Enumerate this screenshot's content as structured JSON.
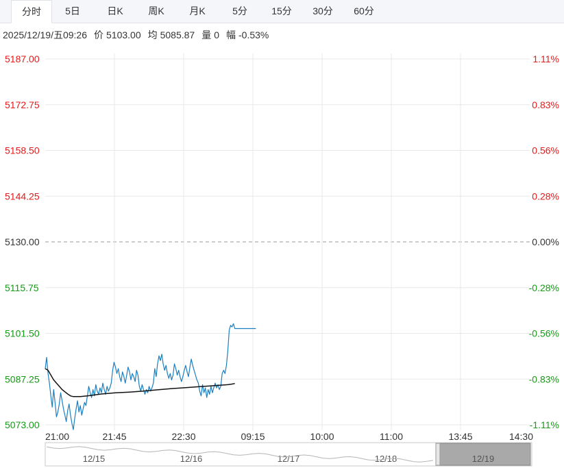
{
  "tabs": [
    {
      "label": "分时",
      "active": true
    },
    {
      "label": "5日",
      "active": false
    },
    {
      "label": "日K",
      "active": false
    },
    {
      "label": "周K",
      "active": false
    },
    {
      "label": "月K",
      "active": false
    },
    {
      "label": "5分",
      "active": false
    },
    {
      "label": "15分",
      "active": false
    },
    {
      "label": "30分",
      "active": false
    },
    {
      "label": "60分",
      "active": false
    }
  ],
  "info": {
    "datetime": "2025/12/19/五09:26",
    "price_label": "价",
    "price": "5103.00",
    "avg_label": "均",
    "avg": "5085.87",
    "volume_label": "量",
    "volume": "0",
    "change_label": "幅",
    "change": "-0.53%"
  },
  "colors": {
    "up": "#e41a1a",
    "down": "#149a14",
    "neutral": "#333333",
    "price_line": "#1a7fc1",
    "avg_line": "#111111",
    "grid": "#e8e8e8",
    "navigator_selected": "#a9a9a9"
  },
  "chart_data": {
    "type": "line",
    "title": "",
    "prev_close": 5130.0,
    "ylim": [
      5073.0,
      5187.0
    ],
    "y_ticks": [
      "5187.00",
      "5172.75",
      "5158.50",
      "5144.25",
      "5130.00",
      "5115.75",
      "5101.50",
      "5087.25",
      "5073.00"
    ],
    "y_tick_values": [
      5187.0,
      5172.75,
      5158.5,
      5144.25,
      5130.0,
      5115.75,
      5101.5,
      5087.25,
      5073.0
    ],
    "pct_ticks": [
      "1.11%",
      "0.83%",
      "0.56%",
      "0.28%",
      "0.00%",
      "-0.28%",
      "-0.56%",
      "-0.83%",
      "-1.11%"
    ],
    "x_ticks": [
      "21:00",
      "21:45",
      "22:30",
      "09:15",
      "10:00",
      "11:00",
      "13:45",
      "14:30"
    ],
    "x_domain": [
      0,
      345
    ],
    "grid": true,
    "series": [
      {
        "key": "price",
        "x": [
          0,
          1,
          2,
          3,
          4,
          5,
          6,
          7,
          8,
          9,
          10,
          11,
          12,
          13,
          14,
          15,
          16,
          17,
          18,
          19,
          20,
          21,
          22,
          23,
          24,
          25,
          26,
          27,
          28,
          29,
          30,
          31,
          32,
          33,
          34,
          35,
          36,
          37,
          38,
          39,
          40,
          41,
          42,
          43,
          44,
          45,
          46,
          47,
          48,
          49,
          50,
          51,
          52,
          53,
          54,
          55,
          56,
          57,
          58,
          59,
          60,
          61,
          62,
          63,
          64,
          65,
          66,
          67,
          68,
          69,
          70,
          71,
          72,
          73,
          74,
          75,
          76,
          77,
          78,
          79,
          80,
          81,
          82,
          83,
          84,
          85,
          86,
          87,
          88,
          89,
          90,
          91,
          92,
          93,
          94,
          95,
          96,
          97,
          98,
          99,
          100,
          101,
          102,
          103,
          104,
          105,
          106,
          107,
          108,
          109,
          110,
          111,
          112,
          113,
          114,
          115,
          116,
          117,
          118,
          119,
          120,
          121,
          122,
          123,
          124,
          125,
          126,
          127,
          128,
          129,
          130,
          131,
          132,
          133,
          134,
          135,
          136,
          137,
          138,
          139,
          140,
          141,
          142,
          143,
          144,
          145,
          146,
          147,
          148,
          149,
          150
        ],
        "y": [
          5090.5,
          5094.0,
          5089.0,
          5086.0,
          5082.0,
          5078.5,
          5084.0,
          5080.0,
          5075.5,
          5077.0,
          5079.5,
          5083.0,
          5080.5,
          5078.0,
          5076.0,
          5074.0,
          5077.5,
          5079.5,
          5076.0,
          5073.5,
          5071.5,
          5075.0,
          5078.0,
          5080.5,
          5077.0,
          5079.0,
          5076.0,
          5078.0,
          5080.0,
          5079.0,
          5082.0,
          5085.0,
          5083.0,
          5081.5,
          5084.0,
          5082.0,
          5085.5,
          5083.5,
          5082.5,
          5084.5,
          5083.0,
          5086.0,
          5084.0,
          5082.5,
          5085.0,
          5083.5,
          5084.5,
          5086.0,
          5090.0,
          5092.5,
          5091.0,
          5089.0,
          5090.5,
          5088.0,
          5086.5,
          5089.5,
          5088.0,
          5086.0,
          5088.5,
          5091.0,
          5089.5,
          5087.0,
          5089.0,
          5088.0,
          5086.5,
          5090.0,
          5088.5,
          5085.0,
          5083.5,
          5085.5,
          5084.0,
          5082.5,
          5084.0,
          5083.0,
          5085.0,
          5083.5,
          5084.5,
          5086.0,
          5090.5,
          5088.0,
          5092.0,
          5094.5,
          5093.0,
          5095.0,
          5092.0,
          5090.0,
          5091.5,
          5089.0,
          5087.5,
          5089.0,
          5087.0,
          5088.5,
          5092.0,
          5090.5,
          5088.5,
          5090.0,
          5088.0,
          5086.5,
          5088.0,
          5090.0,
          5091.5,
          5089.5,
          5088.0,
          5091.0,
          5093.5,
          5091.5,
          5090.0,
          5088.5,
          5087.0,
          5086.0,
          5083.5,
          5082.0,
          5085.5,
          5083.0,
          5084.5,
          5081.5,
          5084.0,
          5082.5,
          5085.0,
          5083.0,
          5084.5,
          5086.0,
          5084.5,
          5085.5,
          5084.0,
          5085.0,
          5089.0,
          5090.0,
          5089.0,
          5091.5,
          5096.0,
          5102.5,
          5104.0,
          5103.5,
          5104.5,
          5103.0,
          5103.0,
          5103.0,
          5103.0,
          5103.0,
          5103.0,
          5103.0,
          5103.0,
          5103.0,
          5103.0,
          5103.0,
          5103.0,
          5103.0,
          5103.0,
          5103.0,
          5103.0
        ]
      },
      {
        "key": "avg",
        "x": [
          0,
          2,
          4,
          6,
          8,
          10,
          12,
          14,
          16,
          18,
          20,
          25,
          30,
          40,
          50,
          60,
          70,
          80,
          90,
          100,
          110,
          120,
          130,
          133,
          135
        ],
        "y": [
          5090.5,
          5090.0,
          5088.5,
          5087.0,
          5086.0,
          5085.0,
          5084.0,
          5083.3,
          5082.6,
          5082.0,
          5081.8,
          5081.8,
          5082.0,
          5082.6,
          5083.0,
          5083.2,
          5083.5,
          5083.9,
          5084.3,
          5084.6,
          5084.9,
          5085.2,
          5085.5,
          5085.7,
          5085.87
        ]
      }
    ]
  },
  "navigator": {
    "dates": [
      "12/15",
      "12/16",
      "12/17",
      "12/18",
      "12/19"
    ],
    "selected_index": 4
  }
}
